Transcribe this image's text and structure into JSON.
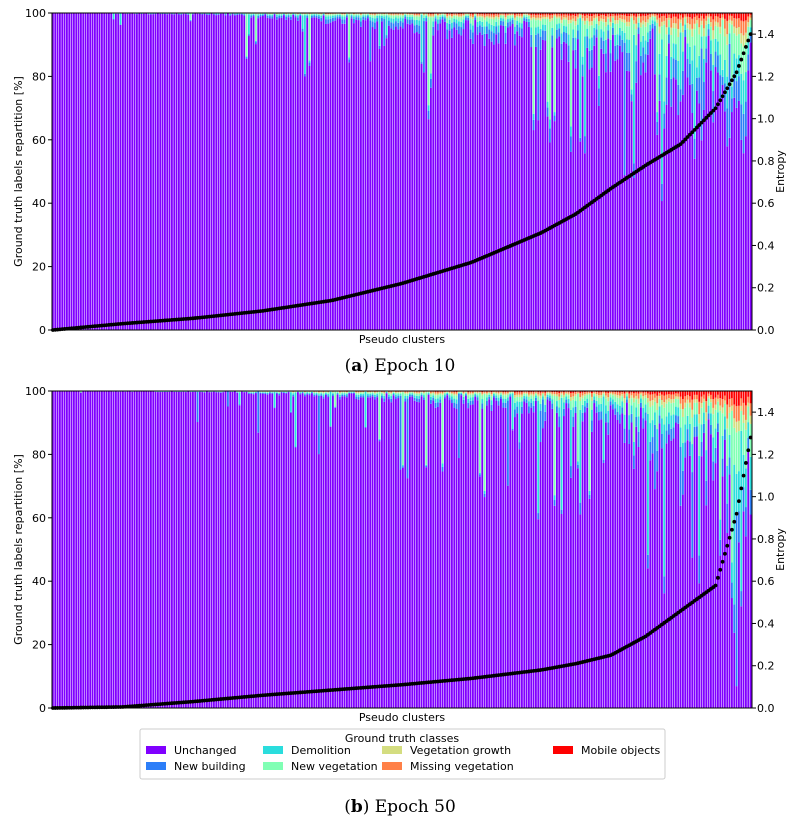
{
  "figure": {
    "caption_a_letter": "a",
    "caption_a_text": " Epoch 10",
    "caption_b_letter": "b",
    "caption_b_text": " Epoch 50"
  },
  "chart_data": [
    {
      "type": "bar",
      "stacked": true,
      "title": "Epoch 10",
      "xlabel": "Pseudo clusters",
      "ylabel": "Ground truth labels repartition [%]",
      "ylabel_right": "Entropy",
      "ylim": [
        0,
        100
      ],
      "ylim_right": [
        0,
        1.5
      ],
      "yticks": [
        "0",
        "20",
        "40",
        "60",
        "80",
        "100"
      ],
      "yticks_right": [
        "0.0",
        "0.2",
        "0.4",
        "0.6",
        "0.8",
        "1.0",
        "1.2",
        "1.4"
      ],
      "num_clusters": 300,
      "classes": [
        "Unchanged",
        "New building",
        "Demolition",
        "New vegetation",
        "Vegetation growth",
        "Missing vegetation",
        "Mobile objects"
      ],
      "class_share_profile": {
        "position": [
          0.0,
          0.25,
          0.5,
          0.7,
          0.85,
          1.0
        ],
        "Unchanged": [
          100,
          99.6,
          97,
          93,
          87,
          75
        ],
        "New building": [
          0,
          0.2,
          1.2,
          2.5,
          4,
          7
        ],
        "Demolition": [
          0,
          0.1,
          0.8,
          1.5,
          3,
          6
        ],
        "New vegetation": [
          0,
          0.05,
          0.5,
          1.5,
          3,
          6
        ],
        "Vegetation growth": [
          0,
          0.02,
          0.2,
          0.5,
          1,
          2
        ],
        "Missing vegetation": [
          0,
          0.02,
          0.2,
          0.6,
          1.3,
          2.5
        ],
        "Mobile objects": [
          0,
          0.01,
          0.1,
          0.4,
          0.7,
          1.5
        ]
      },
      "entropy_profile": {
        "position": [
          0,
          0.1,
          0.2,
          0.3,
          0.4,
          0.5,
          0.6,
          0.7,
          0.75,
          0.8,
          0.85,
          0.9,
          0.95,
          0.98,
          1.0
        ],
        "entropy": [
          0.0,
          0.03,
          0.055,
          0.09,
          0.14,
          0.22,
          0.32,
          0.46,
          0.55,
          0.67,
          0.78,
          0.88,
          1.05,
          1.22,
          1.4
        ]
      }
    },
    {
      "type": "bar",
      "stacked": true,
      "title": "Epoch 50",
      "xlabel": "Pseudo clusters",
      "ylabel": "Ground truth labels repartition [%]",
      "ylabel_right": "Entropy",
      "ylim": [
        0,
        100
      ],
      "ylim_right": [
        0,
        1.5
      ],
      "yticks": [
        "0",
        "20",
        "40",
        "60",
        "80",
        "100"
      ],
      "yticks_right": [
        "0.0",
        "0.2",
        "0.4",
        "0.6",
        "0.8",
        "1.0",
        "1.2",
        "1.4"
      ],
      "num_clusters": 300,
      "classes": [
        "Unchanged",
        "New building",
        "Demolition",
        "New vegetation",
        "Vegetation growth",
        "Missing vegetation",
        "Mobile objects"
      ],
      "class_share_profile": {
        "position": [
          0.0,
          0.25,
          0.5,
          0.7,
          0.85,
          1.0
        ],
        "Unchanged": [
          100,
          99.7,
          98,
          95,
          89,
          70
        ],
        "New building": [
          0,
          0.1,
          0.6,
          1.5,
          3,
          6
        ],
        "Demolition": [
          0,
          0.05,
          0.5,
          1.2,
          3,
          8
        ],
        "New vegetation": [
          0,
          0.05,
          0.4,
          1.0,
          2.5,
          8
        ],
        "Vegetation growth": [
          0,
          0.03,
          0.2,
          0.5,
          1,
          2
        ],
        "Missing vegetation": [
          0,
          0.05,
          0.2,
          0.5,
          1,
          3
        ],
        "Mobile objects": [
          0,
          0.02,
          0.1,
          0.3,
          0.5,
          3
        ]
      },
      "entropy_profile": {
        "position": [
          0,
          0.1,
          0.2,
          0.3,
          0.4,
          0.5,
          0.6,
          0.7,
          0.75,
          0.8,
          0.85,
          0.9,
          0.95,
          0.98,
          1.0
        ],
        "entropy": [
          0.0,
          0.005,
          0.03,
          0.06,
          0.085,
          0.11,
          0.14,
          0.18,
          0.21,
          0.25,
          0.34,
          0.46,
          0.58,
          0.92,
          1.28
        ]
      }
    }
  ],
  "legend": {
    "title": "Ground truth classes",
    "items": [
      {
        "label": "Unchanged",
        "color": "#8000ff"
      },
      {
        "label": "New building",
        "color": "#2c7ef8"
      },
      {
        "label": "Demolition",
        "color": "#2adddd"
      },
      {
        "label": "New vegetation",
        "color": "#80ffb4"
      },
      {
        "label": "Vegetation growth",
        "color": "#d4dd80"
      },
      {
        "label": "Missing vegetation",
        "color": "#ff8047"
      },
      {
        "label": "Mobile objects",
        "color": "#ff0000"
      }
    ]
  }
}
